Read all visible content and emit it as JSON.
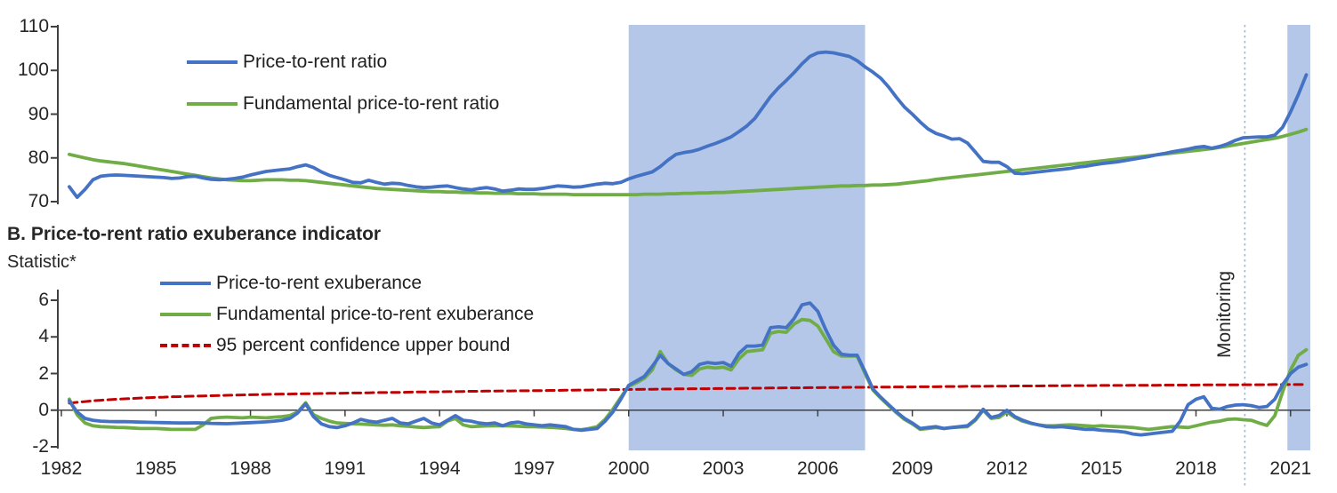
{
  "monitoring_label": "Monitoring",
  "colors": {
    "blue": "#4472C4",
    "green": "#70AD47",
    "red": "#C00000",
    "shading": "#B5C7E8",
    "monitoring_line": "#9FB3D4",
    "axis": "#404040",
    "text": "#262626"
  },
  "panel_a": {
    "legend": [
      {
        "label": "Price-to-rent ratio"
      },
      {
        "label": "Fundamental price-to-rent ratio"
      }
    ],
    "y_ticks": [
      "110",
      "100",
      "90",
      "80",
      "70"
    ]
  },
  "panel_b": {
    "title": "B. Price-to-rent ratio exuberance indicator",
    "y_axis_label": "Statistic*",
    "legend": [
      {
        "label": "Price-to-rent exuberance"
      },
      {
        "label": "Fundamental price-to-rent exuberance"
      },
      {
        "label": "95 percent confidence upper bound"
      }
    ],
    "y_ticks": [
      "6",
      "4",
      "2",
      "0",
      "-2"
    ]
  },
  "x_axis": {
    "tick_labels": [
      "1982",
      "1985",
      "1988",
      "1991",
      "1994",
      "1997",
      "2000",
      "2003",
      "2006",
      "2009",
      "2012",
      "2015",
      "2018",
      "2021"
    ]
  },
  "chart_data": {
    "type": "line",
    "x_start": 1982.25,
    "x_step": 0.25,
    "x_range": [
      1982,
      2021.7
    ],
    "x_tick_years": [
      1982,
      1985,
      1988,
      1991,
      1994,
      1997,
      2000,
      2003,
      2006,
      2009,
      2012,
      2015,
      2018,
      2021
    ],
    "shaded_regions": [
      {
        "x0": 2000.0,
        "x1": 2007.5
      },
      {
        "x0": 2020.9,
        "x1": 2021.65
      }
    ],
    "monitoring_line_x": 2019.55,
    "panels": [
      {
        "id": "A",
        "ylim": [
          70,
          110
        ],
        "yticks": [
          110,
          100,
          90,
          80,
          70
        ],
        "series": [
          {
            "name": "Price-to-rent ratio",
            "color": "blue",
            "values": [
              73.4,
              71.0,
              72.8,
              75.0,
              75.8,
              76.0,
              76.1,
              76.0,
              75.9,
              75.8,
              75.7,
              75.6,
              75.5,
              75.3,
              75.4,
              75.7,
              75.8,
              75.4,
              75.1,
              75.0,
              75.1,
              75.3,
              75.6,
              76.1,
              76.5,
              76.9,
              77.1,
              77.3,
              77.5,
              78.0,
              78.4,
              77.8,
              76.8,
              76.0,
              75.5,
              75.0,
              74.4,
              74.3,
              74.9,
              74.4,
              74.0,
              74.2,
              74.1,
              73.7,
              73.4,
              73.2,
              73.3,
              73.5,
              73.6,
              73.2,
              72.9,
              72.7,
              73.0,
              73.2,
              72.9,
              72.4,
              72.6,
              72.9,
              72.8,
              72.8,
              73.0,
              73.3,
              73.6,
              73.5,
              73.3,
              73.4,
              73.7,
              74.0,
              74.2,
              74.1,
              74.4,
              75.2,
              75.8,
              76.3,
              76.8,
              78.0,
              79.5,
              80.8,
              81.2,
              81.5,
              82.0,
              82.7,
              83.3,
              84.0,
              84.8,
              86.0,
              87.3,
              89.0,
              91.5,
              94.0,
              96.0,
              97.7,
              99.5,
              101.5,
              103.2,
              104.0,
              104.2,
              104.0,
              103.6,
              103.2,
              102.2,
              100.8,
              99.6,
              98.2,
              96.2,
              93.8,
              91.6,
              90.0,
              88.2,
              86.6,
              85.6,
              85.0,
              84.3,
              84.4,
              83.4,
              81.3,
              79.2,
              79.0,
              79.0,
              78.0,
              76.5,
              76.4,
              76.6,
              76.8,
              77.0,
              77.2,
              77.4,
              77.6,
              77.9,
              78.1,
              78.4,
              78.7,
              78.9,
              79.1,
              79.4,
              79.7,
              80.0,
              80.3,
              80.7,
              81.0,
              81.4,
              81.7,
              82.0,
              82.4,
              82.6,
              82.2,
              82.6,
              83.2,
              84.0,
              84.6,
              84.7,
              84.8,
              84.8,
              85.2,
              87.0,
              90.5,
              94.5,
              99.0
            ]
          },
          {
            "name": "Fundamental price-to-rent ratio",
            "color": "green",
            "values": [
              80.8,
              80.4,
              80.0,
              79.6,
              79.3,
              79.1,
              78.9,
              78.7,
              78.4,
              78.1,
              77.8,
              77.5,
              77.2,
              76.9,
              76.6,
              76.3,
              76.0,
              75.7,
              75.4,
              75.2,
              75.0,
              74.9,
              74.8,
              74.8,
              74.9,
              75.0,
              75.0,
              75.0,
              74.9,
              74.9,
              74.8,
              74.6,
              74.4,
              74.2,
              74.0,
              73.8,
              73.6,
              73.4,
              73.2,
              73.0,
              72.9,
              72.8,
              72.7,
              72.6,
              72.5,
              72.4,
              72.3,
              72.3,
              72.2,
              72.2,
              72.1,
              72.1,
              72.0,
              72.0,
              71.9,
              71.9,
              71.9,
              71.8,
              71.8,
              71.8,
              71.7,
              71.7,
              71.7,
              71.7,
              71.6,
              71.6,
              71.6,
              71.6,
              71.6,
              71.6,
              71.6,
              71.6,
              71.6,
              71.7,
              71.7,
              71.7,
              71.8,
              71.8,
              71.9,
              71.9,
              72.0,
              72.0,
              72.1,
              72.1,
              72.2,
              72.3,
              72.4,
              72.5,
              72.6,
              72.7,
              72.8,
              72.9,
              73.0,
              73.1,
              73.2,
              73.3,
              73.4,
              73.5,
              73.6,
              73.6,
              73.7,
              73.7,
              73.8,
              73.8,
              73.9,
              74.0,
              74.2,
              74.4,
              74.6,
              74.8,
              75.1,
              75.3,
              75.5,
              75.7,
              75.9,
              76.1,
              76.3,
              76.5,
              76.7,
              76.9,
              77.1,
              77.3,
              77.5,
              77.7,
              77.9,
              78.1,
              78.3,
              78.5,
              78.7,
              78.9,
              79.1,
              79.3,
              79.5,
              79.7,
              79.9,
              80.1,
              80.3,
              80.5,
              80.7,
              80.9,
              81.1,
              81.3,
              81.5,
              81.7,
              81.9,
              82.1,
              82.4,
              82.7,
              83.0,
              83.3,
              83.6,
              83.9,
              84.2,
              84.5,
              84.9,
              85.4,
              85.9,
              86.5
            ]
          }
        ]
      },
      {
        "id": "B",
        "ylim": [
          -2,
          6
        ],
        "yticks": [
          6,
          4,
          2,
          0,
          -2
        ],
        "series": [
          {
            "name": "Price-to-rent exuberance",
            "color": "blue",
            "values": [
              0.5,
              -0.1,
              -0.45,
              -0.55,
              -0.6,
              -0.62,
              -0.63,
              -0.63,
              -0.64,
              -0.65,
              -0.66,
              -0.67,
              -0.68,
              -0.69,
              -0.7,
              -0.7,
              -0.69,
              -0.7,
              -0.72,
              -0.73,
              -0.74,
              -0.72,
              -0.7,
              -0.68,
              -0.66,
              -0.64,
              -0.6,
              -0.55,
              -0.45,
              -0.15,
              0.35,
              -0.35,
              -0.75,
              -0.9,
              -0.95,
              -0.85,
              -0.7,
              -0.5,
              -0.6,
              -0.65,
              -0.55,
              -0.45,
              -0.7,
              -0.75,
              -0.6,
              -0.45,
              -0.7,
              -0.8,
              -0.55,
              -0.3,
              -0.55,
              -0.6,
              -0.7,
              -0.75,
              -0.7,
              -0.85,
              -0.7,
              -0.65,
              -0.75,
              -0.8,
              -0.85,
              -0.8,
              -0.85,
              -0.9,
              -1.05,
              -1.1,
              -1.05,
              -1.0,
              -0.6,
              -0.1,
              0.6,
              1.35,
              1.6,
              1.85,
              2.4,
              3.0,
              2.55,
              2.25,
              1.95,
              2.1,
              2.5,
              2.6,
              2.55,
              2.6,
              2.4,
              3.1,
              3.5,
              3.5,
              3.55,
              4.5,
              4.55,
              4.5,
              5.0,
              5.75,
              5.85,
              5.4,
              4.4,
              3.55,
              3.05,
              3.0,
              3.0,
              2.1,
              1.15,
              0.7,
              0.3,
              -0.1,
              -0.45,
              -0.7,
              -1.0,
              -0.95,
              -0.9,
              -1.0,
              -0.95,
              -0.9,
              -0.85,
              -0.5,
              0.05,
              -0.4,
              -0.3,
              0.0,
              -0.35,
              -0.55,
              -0.7,
              -0.8,
              -0.9,
              -0.92,
              -0.9,
              -0.95,
              -1.0,
              -1.05,
              -1.05,
              -1.1,
              -1.12,
              -1.15,
              -1.2,
              -1.3,
              -1.35,
              -1.3,
              -1.25,
              -1.2,
              -1.15,
              -0.6,
              0.3,
              0.6,
              0.73,
              0.1,
              0.05,
              0.2,
              0.28,
              0.3,
              0.25,
              0.15,
              0.2,
              0.6,
              1.4,
              2.0,
              2.35,
              2.5
            ]
          },
          {
            "name": "Fundamental price-to-rent exuberance",
            "color": "green",
            "values": [
              0.6,
              -0.25,
              -0.7,
              -0.85,
              -0.9,
              -0.92,
              -0.94,
              -0.95,
              -0.97,
              -1.0,
              -1.0,
              -1.0,
              -1.02,
              -1.05,
              -1.05,
              -1.05,
              -1.05,
              -0.8,
              -0.45,
              -0.4,
              -0.38,
              -0.4,
              -0.42,
              -0.38,
              -0.4,
              -0.42,
              -0.38,
              -0.35,
              -0.3,
              -0.1,
              0.4,
              -0.25,
              -0.45,
              -0.6,
              -0.7,
              -0.72,
              -0.74,
              -0.76,
              -0.78,
              -0.8,
              -0.82,
              -0.8,
              -0.85,
              -0.88,
              -0.92,
              -0.95,
              -0.92,
              -0.9,
              -0.6,
              -0.45,
              -0.8,
              -0.9,
              -0.88,
              -0.86,
              -0.85,
              -0.85,
              -0.86,
              -0.88,
              -0.9,
              -0.9,
              -0.92,
              -0.94,
              -0.96,
              -1.0,
              -1.05,
              -1.07,
              -1.0,
              -0.9,
              -0.5,
              0.05,
              0.7,
              1.3,
              1.5,
              1.75,
              2.2,
              3.2,
              2.55,
              2.2,
              1.95,
              1.9,
              2.25,
              2.35,
              2.3,
              2.35,
              2.2,
              2.8,
              3.2,
              3.25,
              3.3,
              4.2,
              4.3,
              4.25,
              4.7,
              4.95,
              4.9,
              4.6,
              3.9,
              3.2,
              2.95,
              2.95,
              2.95,
              2.0,
              1.1,
              0.65,
              0.25,
              -0.15,
              -0.5,
              -0.75,
              -1.05,
              -1.0,
              -0.95,
              -1.0,
              -0.95,
              -0.92,
              -0.9,
              -0.55,
              0.0,
              -0.45,
              -0.4,
              -0.1,
              -0.4,
              -0.6,
              -0.72,
              -0.8,
              -0.85,
              -0.85,
              -0.82,
              -0.8,
              -0.82,
              -0.85,
              -0.88,
              -0.85,
              -0.88,
              -0.9,
              -0.92,
              -0.95,
              -1.0,
              -1.05,
              -1.0,
              -0.95,
              -0.9,
              -0.92,
              -0.95,
              -0.85,
              -0.75,
              -0.65,
              -0.6,
              -0.5,
              -0.48,
              -0.52,
              -0.55,
              -0.7,
              -0.83,
              -0.3,
              1.0,
              2.2,
              3.0,
              3.3
            ]
          },
          {
            "name": "95 percent confidence upper bound",
            "color": "red",
            "dash": true,
            "values": [
              0.38,
              0.43,
              0.47,
              0.51,
              0.54,
              0.57,
              0.6,
              0.62,
              0.64,
              0.66,
              0.68,
              0.7,
              0.71,
              0.73,
              0.74,
              0.76,
              0.77,
              0.78,
              0.79,
              0.8,
              0.81,
              0.82,
              0.83,
              0.84,
              0.85,
              0.86,
              0.87,
              0.88,
              0.88,
              0.89,
              0.9,
              0.9,
              0.91,
              0.92,
              0.92,
              0.93,
              0.94,
              0.94,
              0.95,
              0.96,
              0.96,
              0.97,
              0.97,
              0.98,
              0.99,
              0.99,
              1.0,
              1.0,
              1.01,
              1.01,
              1.02,
              1.03,
              1.03,
              1.04,
              1.04,
              1.05,
              1.05,
              1.06,
              1.06,
              1.07,
              1.07,
              1.08,
              1.08,
              1.09,
              1.09,
              1.1,
              1.1,
              1.11,
              1.11,
              1.12,
              1.12,
              1.13,
              1.13,
              1.14,
              1.14,
              1.15,
              1.15,
              1.16,
              1.16,
              1.17,
              1.17,
              1.17,
              1.18,
              1.18,
              1.19,
              1.19,
              1.2,
              1.2,
              1.2,
              1.21,
              1.21,
              1.22,
              1.22,
              1.22,
              1.23,
              1.23,
              1.24,
              1.24,
              1.24,
              1.25,
              1.25,
              1.25,
              1.26,
              1.26,
              1.26,
              1.27,
              1.27,
              1.27,
              1.28,
              1.28,
              1.28,
              1.29,
              1.29,
              1.29,
              1.3,
              1.3,
              1.3,
              1.31,
              1.31,
              1.31,
              1.32,
              1.32,
              1.32,
              1.32,
              1.33,
              1.33,
              1.33,
              1.34,
              1.34,
              1.34,
              1.34,
              1.35,
              1.35,
              1.35,
              1.35,
              1.36,
              1.36,
              1.36,
              1.36,
              1.37,
              1.37,
              1.37,
              1.37,
              1.37,
              1.38,
              1.38,
              1.38,
              1.38,
              1.38,
              1.39,
              1.39,
              1.39,
              1.39,
              1.4,
              1.4,
              1.4,
              1.4,
              1.4
            ]
          }
        ]
      }
    ]
  }
}
